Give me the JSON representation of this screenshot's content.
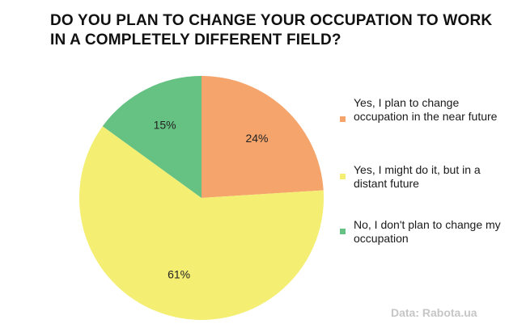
{
  "title": "DO YOU PLAN TO CHANGE YOUR OCCUPATION TO WORK IN A COMPLETELY DIFFERENT FIELD?",
  "source": "Data: Rabota.ua",
  "colors": {
    "slice_1": "#f5a46c",
    "slice_2": "#f4ee72",
    "slice_3": "#65c282"
  },
  "chart_data": {
    "type": "pie",
    "title": "DO YOU PLAN TO CHANGE YOUR OCCUPATION TO WORK IN A COMPLETELY DIFFERENT FIELD?",
    "legend_position": "right",
    "slices": [
      {
        "name": "Yes, I plan to change occupation in the near future",
        "value": 24,
        "label": "24%",
        "color": "#f5a46c"
      },
      {
        "name": "Yes, I might do it, but in a distant future",
        "value": 61,
        "label": "61%",
        "color": "#f4ee72"
      },
      {
        "name": "No, I don't plan to change my occupation",
        "value": 15,
        "label": "15%",
        "color": "#65c282"
      }
    ]
  }
}
